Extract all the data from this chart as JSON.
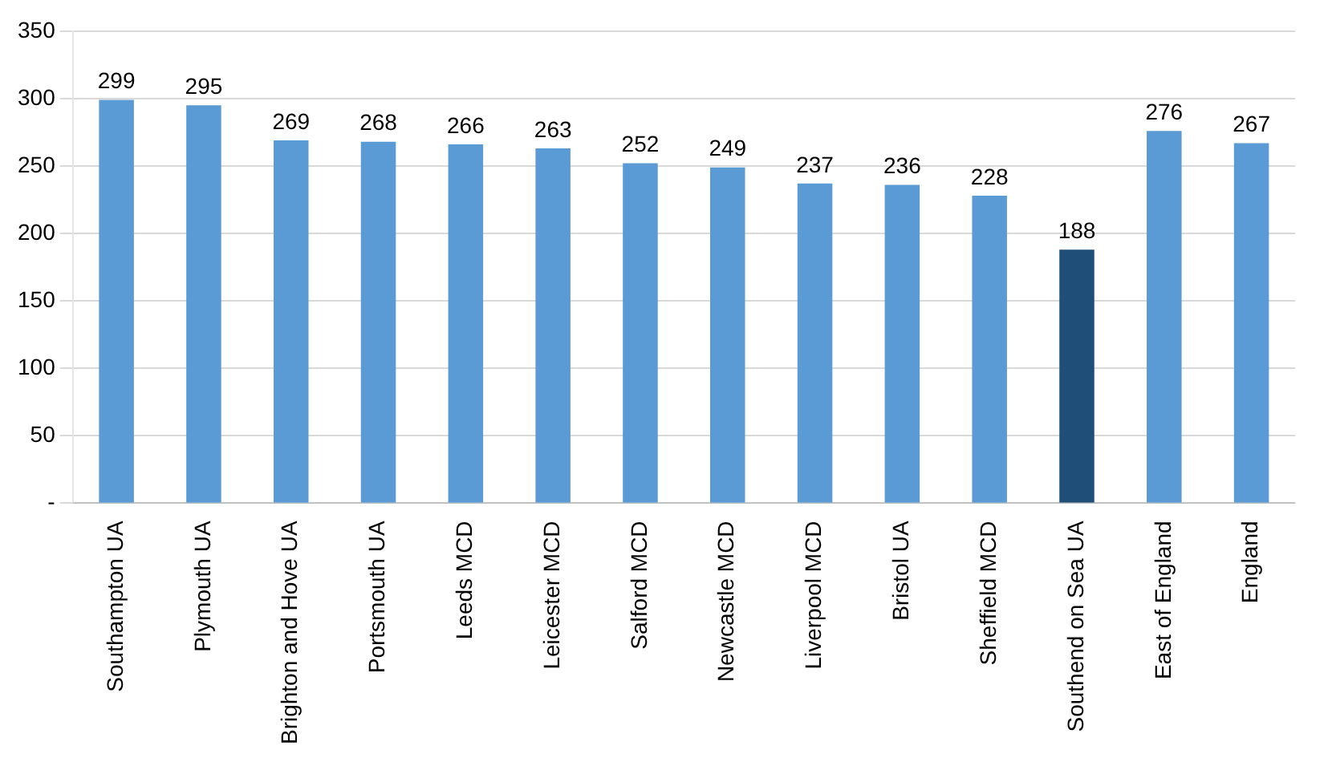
{
  "chart_data": {
    "type": "bar",
    "categories": [
      "Southampton UA",
      "Plymouth UA",
      "Brighton and Hove UA",
      "Portsmouth UA",
      "Leeds MCD",
      "Leicester MCD",
      "Salford MCD",
      "Newcastle MCD",
      "Liverpool MCD",
      "Bristol UA",
      "Sheffield MCD",
      "Southend on Sea UA",
      "East of England",
      "England"
    ],
    "values": [
      299,
      295,
      269,
      268,
      266,
      263,
      252,
      249,
      237,
      236,
      228,
      188,
      276,
      267
    ],
    "colors": [
      "#5b9bd5",
      "#5b9bd5",
      "#5b9bd5",
      "#5b9bd5",
      "#5b9bd5",
      "#5b9bd5",
      "#5b9bd5",
      "#5b9bd5",
      "#5b9bd5",
      "#5b9bd5",
      "#5b9bd5",
      "#1f4e79",
      "#5b9bd5",
      "#5b9bd5"
    ],
    "ylim": [
      0,
      350
    ],
    "yticks": [
      {
        "value": 0,
        "label": "-"
      },
      50,
      100,
      150,
      200,
      250,
      300,
      350
    ],
    "grid": "y",
    "data_labels": true
  }
}
